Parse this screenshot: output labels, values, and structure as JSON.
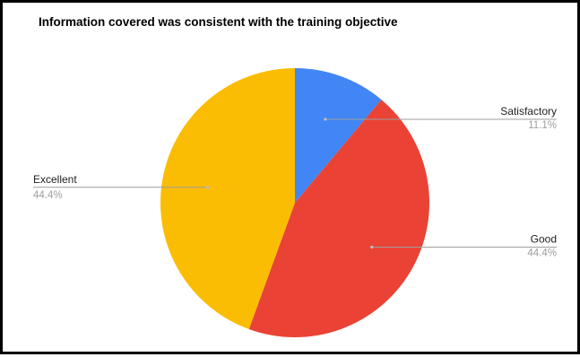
{
  "chart_data": {
    "type": "pie",
    "title": "Information covered was consistent with the training objective",
    "slices": [
      {
        "label": "Satisfactory",
        "value": 11.1,
        "percent_label": "11.1%",
        "color": "#4285F4"
      },
      {
        "label": "Good",
        "value": 44.4,
        "percent_label": "44.4%",
        "color": "#EA4335"
      },
      {
        "label": "Excellent",
        "value": 44.4,
        "percent_label": "44.4%",
        "color": "#FBBC04"
      }
    ],
    "legend": "none",
    "labels": "outside with leader lines"
  }
}
